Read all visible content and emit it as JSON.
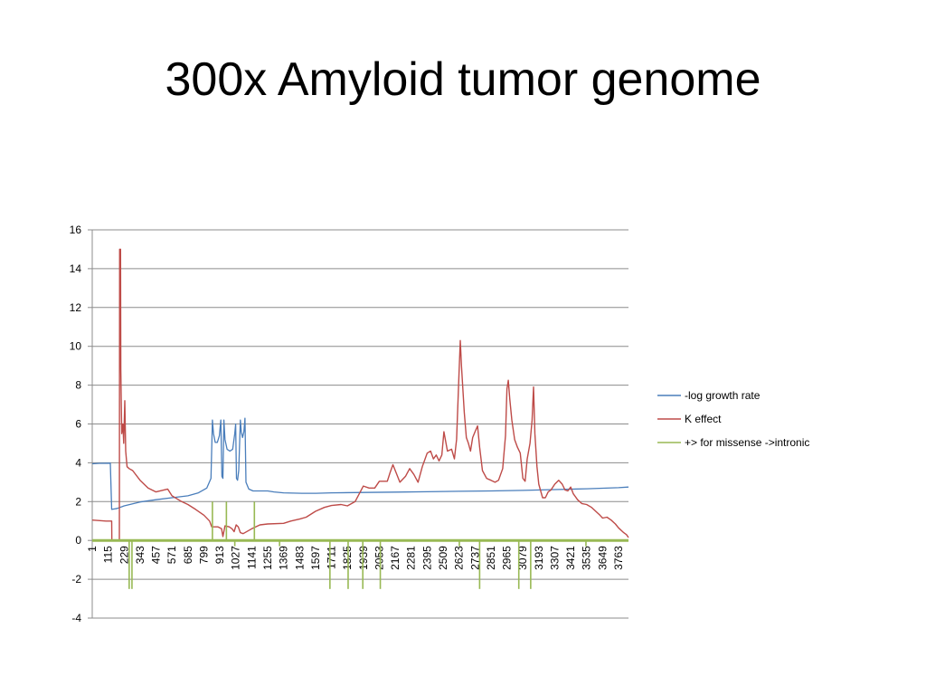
{
  "slide": {
    "title": "300x Amyloid tumor genome"
  },
  "chart_data": {
    "type": "line",
    "x_range": [
      1,
      3834
    ],
    "ylim": [
      -4,
      16
    ],
    "y_ticks": [
      -4,
      -2,
      0,
      2,
      4,
      6,
      8,
      10,
      12,
      14,
      16
    ],
    "x_tick_labels": [
      "1",
      "115",
      "229",
      "343",
      "457",
      "571",
      "685",
      "799",
      "913",
      "1027",
      "1141",
      "1255",
      "1369",
      "1483",
      "1597",
      "1711",
      "1825",
      "1939",
      "2053",
      "2167",
      "2281",
      "2395",
      "2509",
      "2623",
      "2737",
      "2851",
      "2965",
      "3079",
      "3193",
      "3307",
      "3421",
      "3535",
      "3649",
      "3763"
    ],
    "grid": true,
    "legend_position": "right",
    "series": [
      {
        "name": "-log growth rate",
        "color": "#4a7ebb",
        "points": [
          [
            1,
            3.95
          ],
          [
            50,
            3.97
          ],
          [
            130,
            3.98
          ],
          [
            140,
            1.6
          ],
          [
            180,
            1.65
          ],
          [
            229,
            1.78
          ],
          [
            343,
            1.98
          ],
          [
            457,
            2.1
          ],
          [
            571,
            2.2
          ],
          [
            685,
            2.3
          ],
          [
            760,
            2.45
          ],
          [
            820,
            2.7
          ],
          [
            850,
            3.2
          ],
          [
            860,
            6.2
          ],
          [
            868,
            5.5
          ],
          [
            880,
            5.05
          ],
          [
            895,
            5.05
          ],
          [
            910,
            5.4
          ],
          [
            920,
            6.2
          ],
          [
            928,
            3.3
          ],
          [
            935,
            3.2
          ],
          [
            942,
            6.2
          ],
          [
            950,
            5.2
          ],
          [
            965,
            4.7
          ],
          [
            985,
            4.6
          ],
          [
            1005,
            4.7
          ],
          [
            1020,
            5.5
          ],
          [
            1026,
            6.0
          ],
          [
            1032,
            3.2
          ],
          [
            1040,
            3.1
          ],
          [
            1048,
            3.6
          ],
          [
            1060,
            6.2
          ],
          [
            1066,
            5.6
          ],
          [
            1075,
            5.3
          ],
          [
            1085,
            5.6
          ],
          [
            1093,
            6.3
          ],
          [
            1100,
            3.0
          ],
          [
            1120,
            2.65
          ],
          [
            1150,
            2.55
          ],
          [
            1255,
            2.55
          ],
          [
            1300,
            2.5
          ],
          [
            1369,
            2.45
          ],
          [
            1500,
            2.43
          ],
          [
            1600,
            2.43
          ],
          [
            1711,
            2.45
          ],
          [
            1939,
            2.47
          ],
          [
            2167,
            2.49
          ],
          [
            2395,
            2.51
          ],
          [
            2623,
            2.53
          ],
          [
            2851,
            2.55
          ],
          [
            3079,
            2.58
          ],
          [
            3307,
            2.62
          ],
          [
            3535,
            2.66
          ],
          [
            3763,
            2.72
          ],
          [
            3834,
            2.75
          ]
        ]
      },
      {
        "name": "K effect",
        "color": "#be4b48",
        "points": [
          [
            1,
            1.05
          ],
          [
            100,
            1.0
          ],
          [
            140,
            1.0
          ],
          [
            141,
            0
          ],
          [
            195,
            0
          ],
          [
            197,
            15
          ],
          [
            203,
            15
          ],
          [
            205,
            8.8
          ],
          [
            212,
            5.5
          ],
          [
            220,
            6.0
          ],
          [
            226,
            5.0
          ],
          [
            234,
            7.2
          ],
          [
            240,
            4.6
          ],
          [
            250,
            3.8
          ],
          [
            265,
            3.7
          ],
          [
            290,
            3.6
          ],
          [
            343,
            3.1
          ],
          [
            400,
            2.7
          ],
          [
            457,
            2.5
          ],
          [
            540,
            2.65
          ],
          [
            571,
            2.3
          ],
          [
            640,
            2.0
          ],
          [
            685,
            1.85
          ],
          [
            740,
            1.6
          ],
          [
            799,
            1.3
          ],
          [
            840,
            1.0
          ],
          [
            855,
            0.7
          ],
          [
            900,
            0.7
          ],
          [
            925,
            0.6
          ],
          [
            935,
            0.2
          ],
          [
            950,
            0.75
          ],
          [
            980,
            0.7
          ],
          [
            1000,
            0.6
          ],
          [
            1015,
            0.45
          ],
          [
            1030,
            0.8
          ],
          [
            1045,
            0.7
          ],
          [
            1060,
            0.4
          ],
          [
            1080,
            0.35
          ],
          [
            1141,
            0.6
          ],
          [
            1200,
            0.8
          ],
          [
            1255,
            0.85
          ],
          [
            1369,
            0.88
          ],
          [
            1420,
            1.0
          ],
          [
            1483,
            1.1
          ],
          [
            1530,
            1.2
          ],
          [
            1597,
            1.5
          ],
          [
            1660,
            1.7
          ],
          [
            1711,
            1.8
          ],
          [
            1780,
            1.85
          ],
          [
            1825,
            1.78
          ],
          [
            1880,
            2.0
          ],
          [
            1939,
            2.8
          ],
          [
            1980,
            2.7
          ],
          [
            2020,
            2.7
          ],
          [
            2053,
            3.05
          ],
          [
            2110,
            3.05
          ],
          [
            2130,
            3.5
          ],
          [
            2150,
            3.9
          ],
          [
            2167,
            3.6
          ],
          [
            2200,
            3.0
          ],
          [
            2240,
            3.3
          ],
          [
            2270,
            3.7
          ],
          [
            2300,
            3.4
          ],
          [
            2330,
            3.0
          ],
          [
            2360,
            3.8
          ],
          [
            2395,
            4.5
          ],
          [
            2420,
            4.6
          ],
          [
            2440,
            4.2
          ],
          [
            2460,
            4.4
          ],
          [
            2480,
            4.1
          ],
          [
            2500,
            4.4
          ],
          [
            2515,
            5.6
          ],
          [
            2540,
            4.6
          ],
          [
            2570,
            4.7
          ],
          [
            2590,
            4.2
          ],
          [
            2605,
            5.2
          ],
          [
            2623,
            8.6
          ],
          [
            2632,
            10.3
          ],
          [
            2640,
            9.0
          ],
          [
            2660,
            6.6
          ],
          [
            2675,
            5.3
          ],
          [
            2690,
            5.0
          ],
          [
            2705,
            4.6
          ],
          [
            2720,
            5.3
          ],
          [
            2737,
            5.6
          ],
          [
            2755,
            5.9
          ],
          [
            2770,
            4.8
          ],
          [
            2790,
            3.6
          ],
          [
            2820,
            3.2
          ],
          [
            2851,
            3.1
          ],
          [
            2880,
            3.0
          ],
          [
            2905,
            3.1
          ],
          [
            2935,
            3.7
          ],
          [
            2955,
            5.4
          ],
          [
            2965,
            7.8
          ],
          [
            2975,
            8.25
          ],
          [
            2985,
            7.3
          ],
          [
            3000,
            6.2
          ],
          [
            3020,
            5.2
          ],
          [
            3040,
            4.8
          ],
          [
            3060,
            4.5
          ],
          [
            3079,
            3.2
          ],
          [
            3095,
            3.05
          ],
          [
            3110,
            4.2
          ],
          [
            3130,
            5.0
          ],
          [
            3145,
            6.2
          ],
          [
            3155,
            7.9
          ],
          [
            3165,
            5.5
          ],
          [
            3180,
            3.8
          ],
          [
            3193,
            2.9
          ],
          [
            3220,
            2.2
          ],
          [
            3240,
            2.2
          ],
          [
            3260,
            2.5
          ],
          [
            3280,
            2.6
          ],
          [
            3307,
            2.9
          ],
          [
            3335,
            3.1
          ],
          [
            3360,
            2.9
          ],
          [
            3380,
            2.6
          ],
          [
            3400,
            2.55
          ],
          [
            3421,
            2.75
          ],
          [
            3440,
            2.4
          ],
          [
            3470,
            2.1
          ],
          [
            3500,
            1.9
          ],
          [
            3535,
            1.85
          ],
          [
            3570,
            1.7
          ],
          [
            3600,
            1.5
          ],
          [
            3630,
            1.3
          ],
          [
            3649,
            1.15
          ],
          [
            3680,
            1.2
          ],
          [
            3710,
            1.05
          ],
          [
            3740,
            0.85
          ],
          [
            3763,
            0.65
          ],
          [
            3800,
            0.4
          ],
          [
            3820,
            0.3
          ],
          [
            3834,
            0.15
          ]
        ]
      },
      {
        "name": "+> for missense ->intronic",
        "color": "#98b954",
        "baseline": 0,
        "spikes": [
          [
            265,
            -2.5
          ],
          [
            285,
            -2.5
          ],
          [
            860,
            2.0
          ],
          [
            960,
            2.0
          ],
          [
            1020,
            -0.3
          ],
          [
            1160,
            2.0
          ],
          [
            1340,
            -0.3
          ],
          [
            1700,
            -2.5
          ],
          [
            1830,
            -2.5
          ],
          [
            1935,
            -2.5
          ],
          [
            2060,
            -2.5
          ],
          [
            2625,
            -0.3
          ],
          [
            2770,
            -2.5
          ],
          [
            3050,
            -2.5
          ],
          [
            3135,
            -2.5
          ],
          [
            3530,
            -0.3
          ]
        ]
      }
    ]
  }
}
